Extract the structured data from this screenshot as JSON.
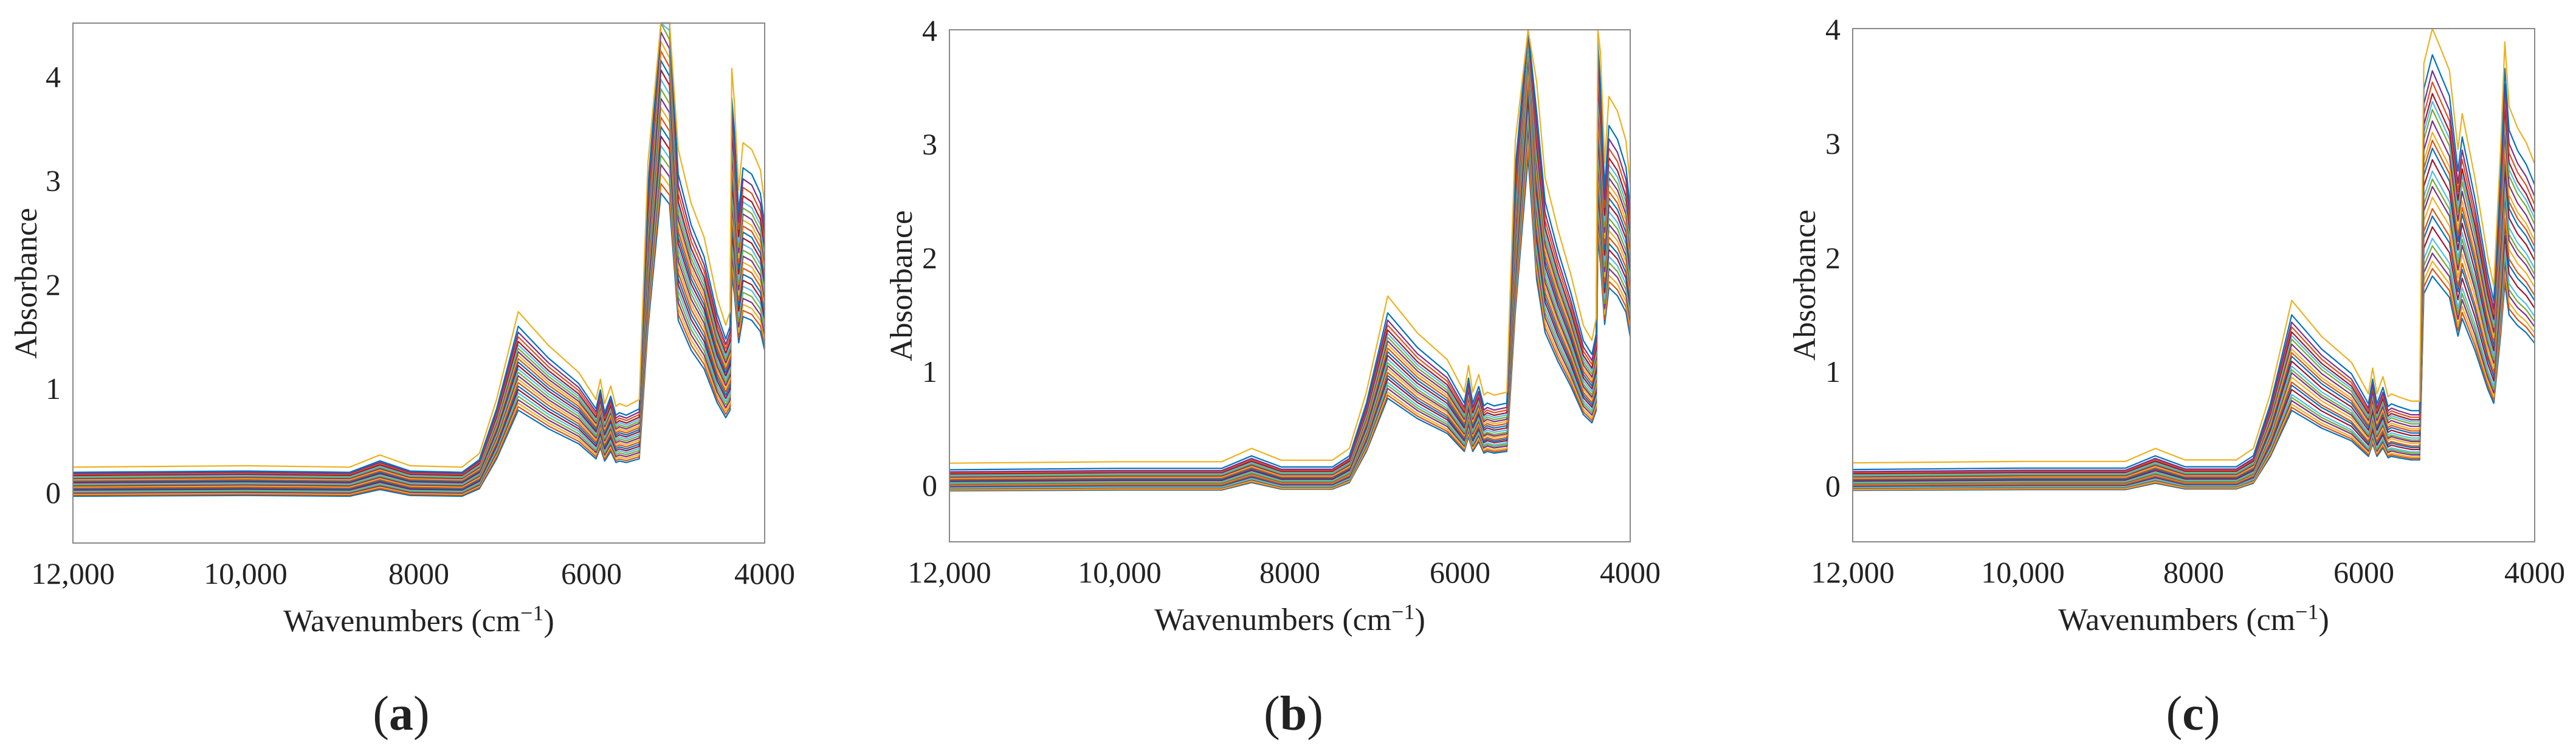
{
  "chart_data": [
    {
      "panel_label": "a",
      "type": "line",
      "xlabel": "Wavenumbers",
      "xlabel_unit": "(cm",
      "xlabel_exp": "−1",
      "xlabel_close": ")",
      "ylabel": "Absorbance",
      "xlim": [
        12000,
        4000
      ],
      "ylim": [
        -0.5,
        4.5
      ],
      "xticks": [
        12000,
        10000,
        8000,
        6000,
        4000
      ],
      "xtick_labels": [
        "12,000",
        "10,000",
        "8000",
        "6000",
        "4000"
      ],
      "yticks": [
        0,
        1,
        2,
        3,
        4
      ],
      "ytick_labels": [
        "0",
        "1",
        "2",
        "3",
        "4"
      ],
      "spectrum_keypoints": {
        "x": [
          12000,
          10000,
          8800,
          8450,
          8100,
          7500,
          7300,
          7100,
          6850,
          6500,
          6150,
          5950,
          5900,
          5850,
          5780,
          5720,
          5680,
          5600,
          5450,
          5350,
          5200,
          5100,
          5000,
          4850,
          4700,
          4550,
          4450,
          4400,
          4380,
          4350,
          4300,
          4250,
          4150,
          4050,
          4000
        ],
        "y": [
          0.05,
          0.06,
          0.05,
          0.14,
          0.06,
          0.05,
          0.15,
          0.55,
          1.2,
          0.95,
          0.75,
          0.55,
          0.7,
          0.52,
          0.65,
          0.5,
          0.52,
          0.5,
          0.55,
          2.3,
          4.1,
          3.95,
          2.4,
          2.0,
          1.75,
          1.3,
          1.1,
          1.2,
          3.0,
          2.75,
          2.1,
          2.45,
          2.4,
          2.25,
          2.0
        ]
      },
      "series_scales": [
        0.72,
        0.74,
        0.76,
        0.78,
        0.8,
        0.82,
        0.84,
        0.86,
        0.88,
        0.9,
        0.92,
        0.94,
        0.96,
        0.98,
        1.0,
        1.02,
        1.04,
        1.06,
        1.08,
        1.1,
        1.12,
        1.15,
        1.18,
        1.22,
        1.3
      ],
      "series_offsets": [
        -0.1,
        -0.09,
        -0.08,
        -0.07,
        -0.06,
        -0.05,
        -0.04,
        -0.03,
        -0.02,
        -0.01,
        0.0,
        0.01,
        0.02,
        0.03,
        0.04,
        0.05,
        0.06,
        0.07,
        0.08,
        0.09,
        0.1,
        0.11,
        0.12,
        0.13,
        0.18
      ],
      "series_colors": [
        "#0072BD",
        "#D95319",
        "#EDB120",
        "#7E2F8E",
        "#77AC30",
        "#4DBEEE",
        "#A2142F",
        "#0072BD",
        "#D95319",
        "#EDB120",
        "#7E2F8E",
        "#77AC30",
        "#4DBEEE",
        "#A2142F",
        "#0072BD",
        "#D95319",
        "#EDB120",
        "#7E2F8E",
        "#77AC30",
        "#4DBEEE",
        "#A2142F",
        "#D95319",
        "#7E2F8E",
        "#0072BD",
        "#EDB120"
      ]
    },
    {
      "panel_label": "b",
      "type": "line",
      "xlabel": "Wavenumbers",
      "xlabel_unit": "(cm",
      "xlabel_exp": "−1",
      "xlabel_close": ")",
      "ylabel": "Absorbance",
      "xlim": [
        12000,
        4000
      ],
      "ylim": [
        -0.5,
        4.0
      ],
      "xticks": [
        12000,
        10000,
        8000,
        6000,
        4000
      ],
      "xtick_labels": [
        "12,000",
        "10,000",
        "8000",
        "6000",
        "4000"
      ],
      "yticks": [
        0,
        1,
        2,
        3,
        4
      ],
      "ytick_labels": [
        "0",
        "1",
        "2",
        "3",
        "4"
      ],
      "spectrum_keypoints": {
        "x": [
          12000,
          10000,
          8800,
          8450,
          8100,
          7500,
          7300,
          7100,
          6850,
          6500,
          6150,
          5950,
          5900,
          5850,
          5780,
          5720,
          5680,
          5600,
          5450,
          5350,
          5200,
          5100,
          5000,
          4850,
          4700,
          4550,
          4450,
          4400,
          4380,
          4350,
          4300,
          4250,
          4150,
          4050,
          4000
        ],
        "y": [
          0.02,
          0.03,
          0.03,
          0.12,
          0.04,
          0.04,
          0.12,
          0.5,
          1.15,
          0.9,
          0.72,
          0.5,
          0.68,
          0.5,
          0.62,
          0.48,
          0.5,
          0.48,
          0.5,
          2.2,
          4.1,
          2.6,
          1.95,
          1.6,
          1.3,
          0.95,
          0.85,
          1.0,
          3.1,
          2.8,
          2.05,
          2.5,
          2.4,
          2.2,
          1.9
        ]
      },
      "series_scales": [
        0.72,
        0.74,
        0.76,
        0.78,
        0.8,
        0.82,
        0.84,
        0.86,
        0.88,
        0.9,
        0.92,
        0.94,
        0.96,
        0.98,
        1.0,
        1.02,
        1.04,
        1.06,
        1.08,
        1.1,
        1.12,
        1.15,
        1.18,
        1.22,
        1.3
      ],
      "series_offsets": [
        -0.08,
        -0.075,
        -0.07,
        -0.06,
        -0.055,
        -0.05,
        -0.04,
        -0.035,
        -0.03,
        -0.02,
        -0.015,
        -0.01,
        0.0,
        0.01,
        0.02,
        0.03,
        0.04,
        0.05,
        0.06,
        0.07,
        0.08,
        0.09,
        0.1,
        0.12,
        0.18
      ],
      "series_colors": [
        "#0072BD",
        "#D95319",
        "#EDB120",
        "#7E2F8E",
        "#77AC30",
        "#4DBEEE",
        "#A2142F",
        "#0072BD",
        "#D95319",
        "#EDB120",
        "#7E2F8E",
        "#77AC30",
        "#4DBEEE",
        "#A2142F",
        "#0072BD",
        "#D95319",
        "#EDB120",
        "#7E2F8E",
        "#77AC30",
        "#4DBEEE",
        "#A2142F",
        "#D95319",
        "#7E2F8E",
        "#0072BD",
        "#EDB120"
      ]
    },
    {
      "panel_label": "c",
      "type": "line",
      "xlabel": "Wavenumbers",
      "xlabel_unit": "(cm",
      "xlabel_exp": "−1",
      "xlabel_close": ")",
      "ylabel": "Absorbance",
      "xlim": [
        12000,
        4000
      ],
      "ylim": [
        -0.5,
        4.0
      ],
      "xticks": [
        12000,
        10000,
        8000,
        6000,
        4000
      ],
      "xtick_labels": [
        "12,000",
        "10,000",
        "8000",
        "6000",
        "4000"
      ],
      "yticks": [
        0,
        1,
        2,
        3,
        4
      ],
      "ytick_labels": [
        "0",
        "1",
        "2",
        "3",
        "4"
      ],
      "spectrum_keypoints": {
        "x": [
          12000,
          10000,
          8800,
          8450,
          8100,
          7500,
          7300,
          7100,
          6850,
          6500,
          6150,
          5950,
          5900,
          5850,
          5780,
          5720,
          5680,
          5600,
          5450,
          5350,
          5300,
          5200,
          5100,
          5000,
          4900,
          4850,
          4700,
          4550,
          4480,
          4400,
          4350,
          4300,
          4200,
          4100,
          4000
        ],
        "y": [
          0.02,
          0.03,
          0.03,
          0.12,
          0.04,
          0.04,
          0.12,
          0.5,
          1.15,
          0.9,
          0.72,
          0.5,
          0.68,
          0.5,
          0.62,
          0.48,
          0.5,
          0.48,
          0.45,
          0.45,
          2.8,
          3.05,
          2.9,
          2.75,
          2.2,
          2.45,
          2.0,
          1.45,
          1.25,
          2.2,
          2.95,
          2.5,
          2.35,
          2.25,
          2.1
        ]
      },
      "series_scales": [
        0.62,
        0.64,
        0.66,
        0.68,
        0.7,
        0.72,
        0.75,
        0.78,
        0.8,
        0.83,
        0.86,
        0.88,
        0.9,
        0.93,
        0.96,
        0.98,
        1.0,
        1.03,
        1.06,
        1.08,
        1.1,
        1.13,
        1.16,
        1.2,
        1.26
      ],
      "series_offsets": [
        -0.08,
        -0.075,
        -0.07,
        -0.06,
        -0.055,
        -0.05,
        -0.04,
        -0.035,
        -0.03,
        -0.02,
        -0.015,
        -0.01,
        0.0,
        0.01,
        0.02,
        0.03,
        0.04,
        0.05,
        0.06,
        0.07,
        0.08,
        0.09,
        0.1,
        0.12,
        0.18
      ],
      "series_colors": [
        "#0072BD",
        "#D95319",
        "#EDB120",
        "#7E2F8E",
        "#77AC30",
        "#4DBEEE",
        "#A2142F",
        "#0072BD",
        "#D95319",
        "#EDB120",
        "#7E2F8E",
        "#77AC30",
        "#4DBEEE",
        "#A2142F",
        "#0072BD",
        "#D95319",
        "#EDB120",
        "#7E2F8E",
        "#77AC30",
        "#4DBEEE",
        "#A2142F",
        "#D95319",
        "#7E2F8E",
        "#0072BD",
        "#EDB120"
      ]
    }
  ]
}
